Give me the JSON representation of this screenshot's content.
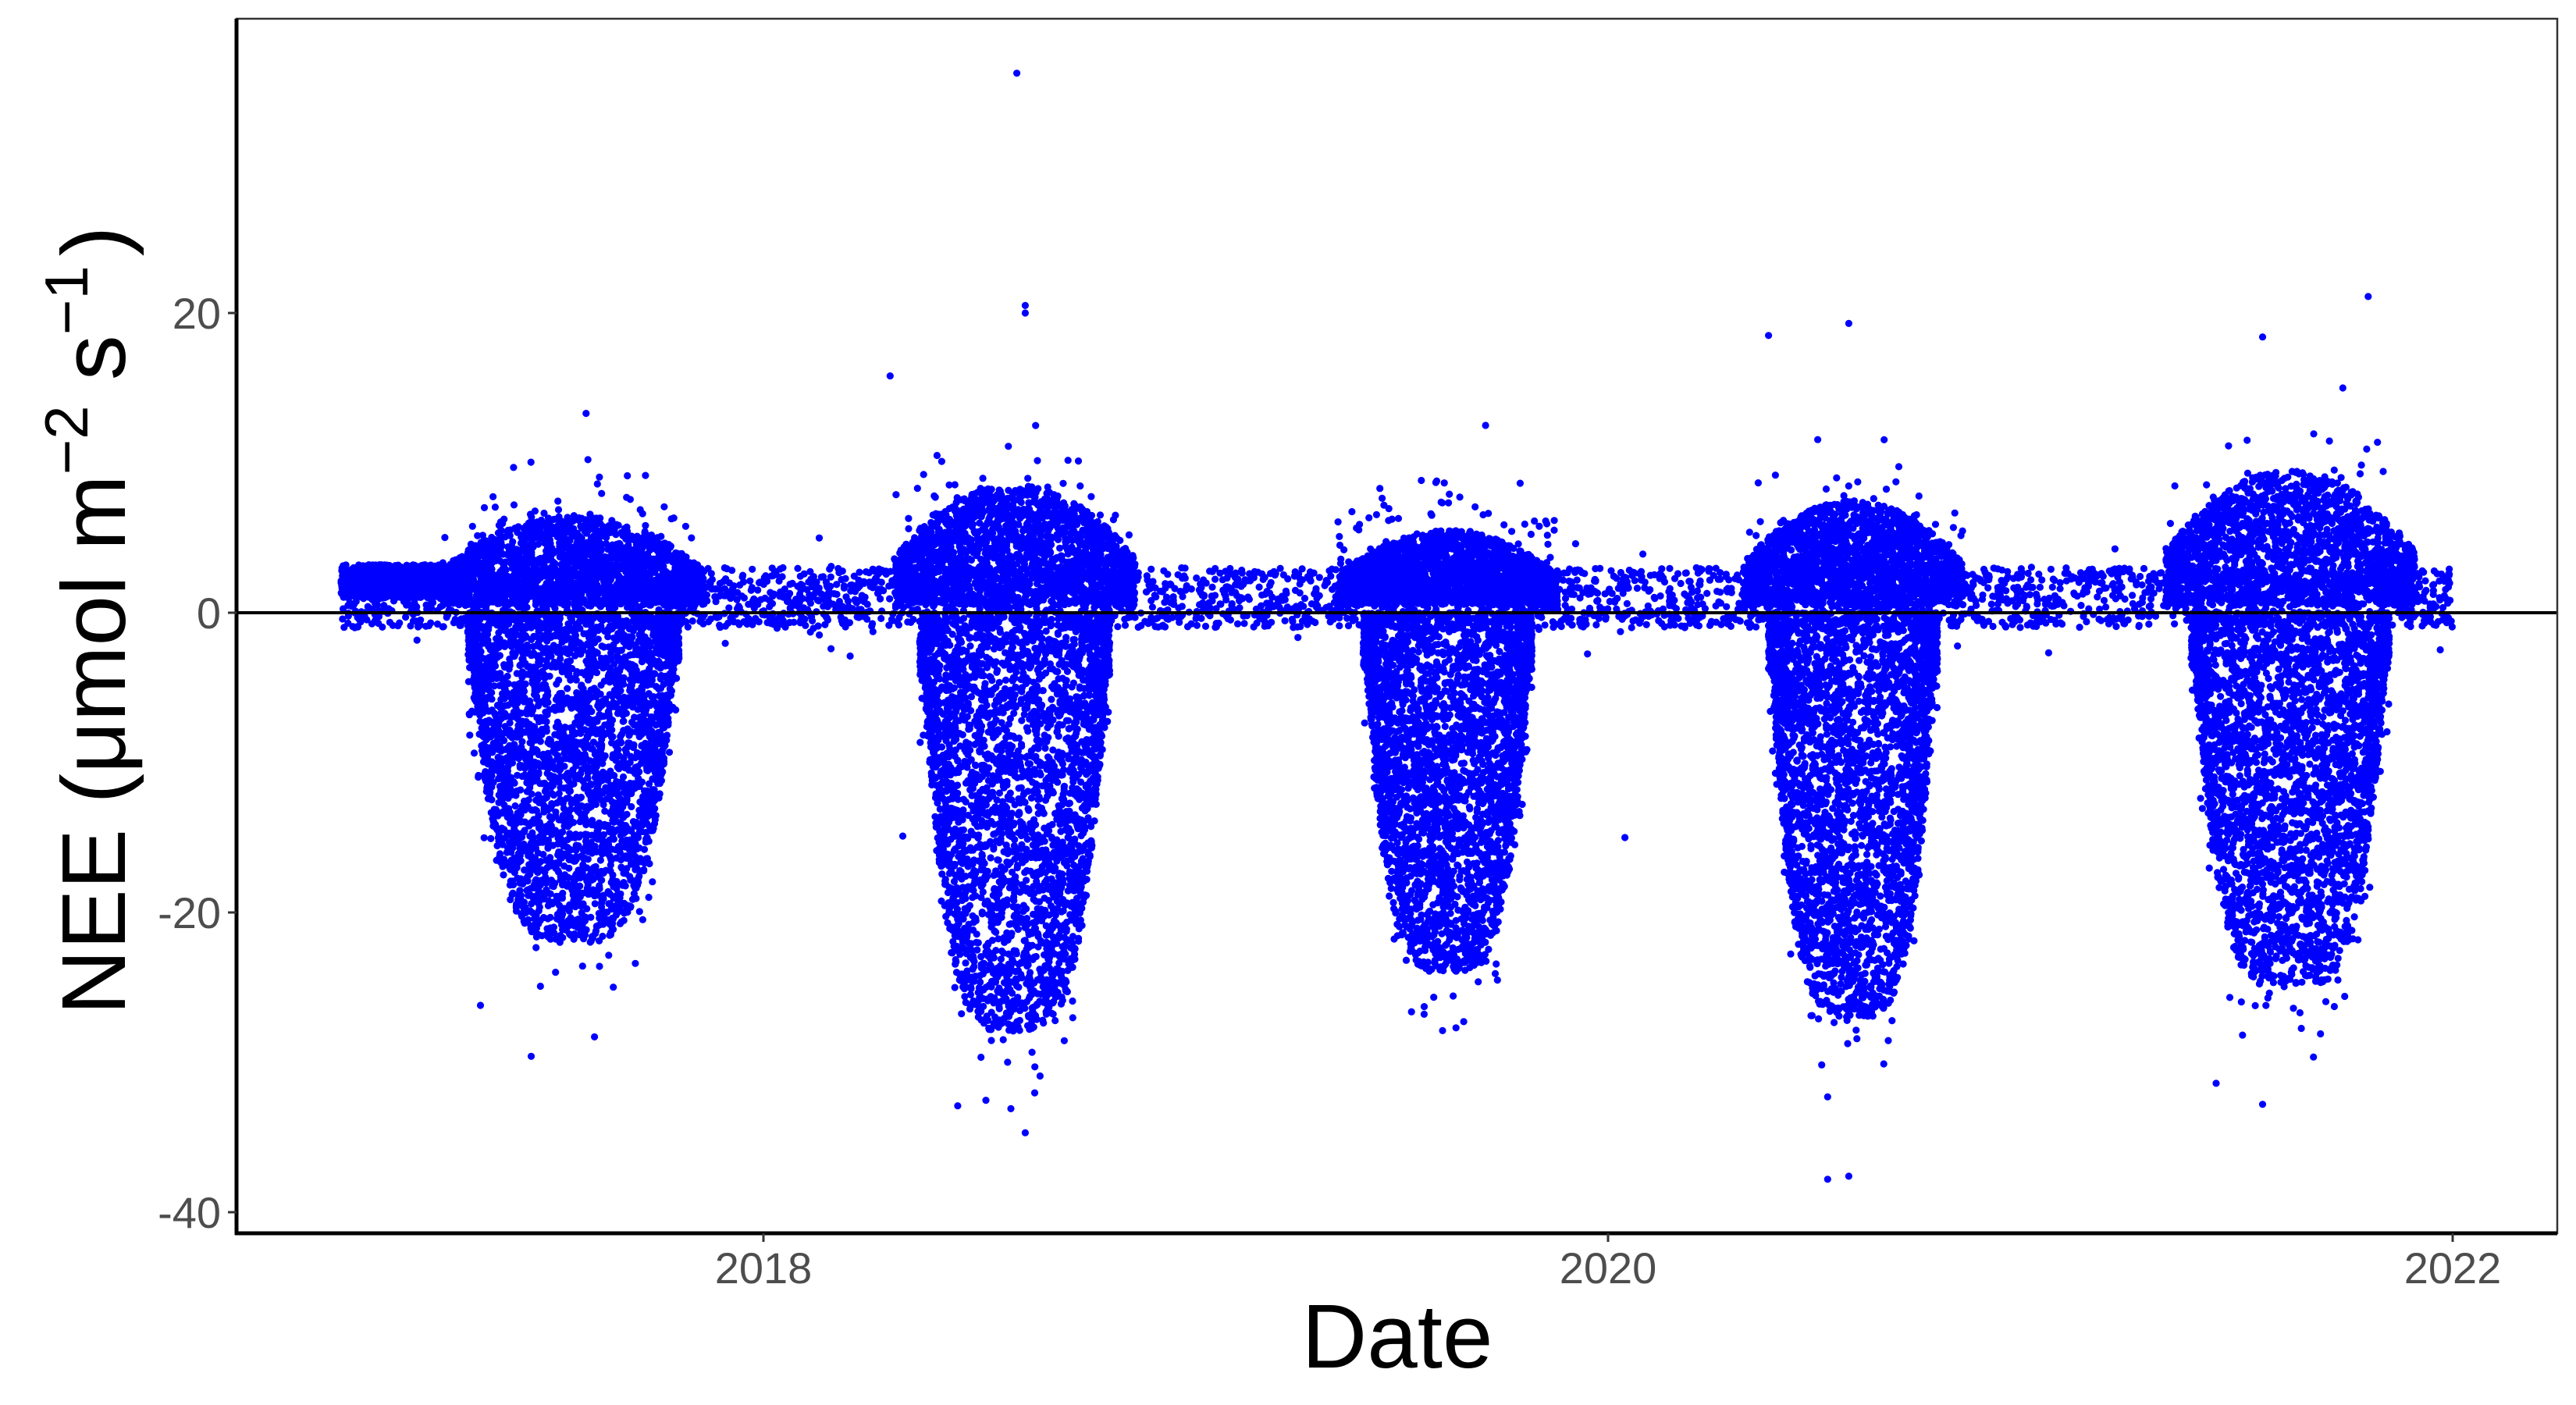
{
  "chart_data": {
    "type": "scatter",
    "title": "",
    "xlabel": "Date",
    "ylabel": "NEE (μmol m⁻² s⁻¹)",
    "ylabel_parts": {
      "main": "NEE (μmol m",
      "exp1": "−2",
      "mid": " s",
      "exp2": "−1",
      "close": ")"
    },
    "x_range": [
      2016.62,
      2022.25
    ],
    "y_range": [
      -41.5,
      39.5
    ],
    "x_ticks": [
      {
        "value": 2018,
        "label": "2018"
      },
      {
        "value": 2020,
        "label": "2020"
      },
      {
        "value": 2022,
        "label": "2022"
      }
    ],
    "y_ticks": [
      {
        "value": -40,
        "label": "-40"
      },
      {
        "value": -20,
        "label": "-20"
      },
      {
        "value": 0,
        "label": "0"
      },
      {
        "value": 20,
        "label": "20"
      }
    ],
    "hline": {
      "y": 0,
      "color": "#000000"
    },
    "grid": false,
    "legend": null,
    "point_color": "#0000ff",
    "data_span": {
      "start": 2017.0,
      "end": 2022.0
    },
    "series": [
      {
        "name": "NEE",
        "description": "Half-hourly NEE; positive winter baseline ~0–3, growing-season uptake down to ~-25 to -35",
        "seasons": [
          {
            "year": 2017,
            "peak_start": 2017.3,
            "peak_end": 2017.8,
            "min_typical": -22,
            "max_typical": 6
          },
          {
            "year": 2018,
            "peak_start": 2018.37,
            "peak_end": 2018.82,
            "min_typical": -28,
            "max_typical": 8
          },
          {
            "year": 2019,
            "peak_start": 2019.42,
            "peak_end": 2019.82,
            "min_typical": -24,
            "max_typical": 5
          },
          {
            "year": 2020,
            "peak_start": 2020.38,
            "peak_end": 2020.78,
            "min_typical": -27,
            "max_typical": 7
          },
          {
            "year": 2021,
            "peak_start": 2021.38,
            "peak_end": 2021.85,
            "min_typical": -25,
            "max_typical": 9
          }
        ],
        "winter_band": {
          "min": -1,
          "max": 3
        },
        "early_2017_band": {
          "start": 2017.0,
          "end": 2017.28,
          "min": 1,
          "max": 3.2
        },
        "outliers": [
          {
            "x": 2018.6,
            "y": 36.0
          },
          {
            "x": 2018.62,
            "y": 20.5
          },
          {
            "x": 2018.62,
            "y": 20.0
          },
          {
            "x": 2018.3,
            "y": 15.8
          },
          {
            "x": 2019.71,
            "y": 12.5
          },
          {
            "x": 2020.38,
            "y": 18.5
          },
          {
            "x": 2020.57,
            "y": 19.3
          },
          {
            "x": 2021.55,
            "y": 18.4
          },
          {
            "x": 2021.8,
            "y": 21.1
          },
          {
            "x": 2021.74,
            "y": 15.0
          },
          {
            "x": 2017.58,
            "y": 13.3
          },
          {
            "x": 2020.52,
            "y": -37.8
          },
          {
            "x": 2020.57,
            "y": -37.6
          },
          {
            "x": 2018.62,
            "y": -34.7
          },
          {
            "x": 2018.46,
            "y": -32.9
          },
          {
            "x": 2020.52,
            "y": -32.3
          },
          {
            "x": 2021.55,
            "y": -32.8
          },
          {
            "x": 2021.44,
            "y": -31.4
          },
          {
            "x": 2017.45,
            "y": -29.6
          },
          {
            "x": 2017.6,
            "y": -28.3
          },
          {
            "x": 2019.64,
            "y": -27.7
          },
          {
            "x": 2020.04,
            "y": -15.0
          },
          {
            "x": 2018.33,
            "y": -14.9
          },
          {
            "x": 2017.33,
            "y": -26.2
          }
        ]
      }
    ]
  }
}
